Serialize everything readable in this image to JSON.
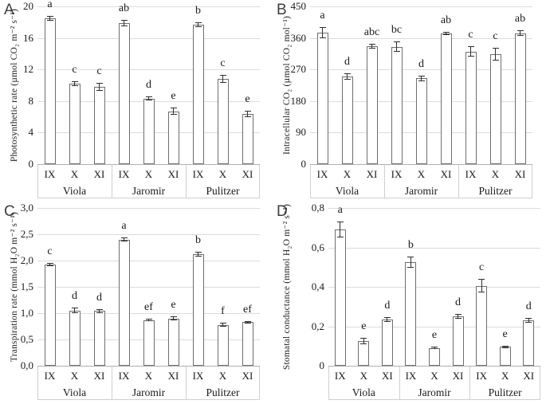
{
  "figure": {
    "background": "#ffffff"
  },
  "colors": {
    "bar_fill": "#ffffff",
    "bar_border": "#6e6e6e",
    "gridline": "#dcdcdc",
    "axis_line": "#b0b0b0",
    "separator": "#cfcfcf",
    "error_bar": "#2f2f2f",
    "text": "#1a1a1a",
    "panel_letter": "#3d3d3d"
  },
  "chart_data": [
    {
      "panel": "A",
      "type": "bar",
      "title": "",
      "ylabel": "Photosynthetic rate (µmol CO₂ m⁻² s⁻¹)",
      "xlabel": "",
      "ylim": [
        0,
        20
      ],
      "yticks": [
        0,
        4,
        8,
        12,
        16,
        20
      ],
      "ytick_labels": [
        "0",
        "4",
        "8",
        "12",
        "16",
        "20"
      ],
      "grid": true,
      "legend": "none",
      "categories": [
        "IX",
        "X",
        "XI"
      ],
      "groups": [
        {
          "label": "Viola",
          "values": [
            18.5,
            10.2,
            9.8
          ],
          "errors": [
            0.3,
            0.3,
            0.5
          ],
          "letters": [
            "a",
            "c",
            "c"
          ]
        },
        {
          "label": "Jaromir",
          "values": [
            17.9,
            8.3,
            6.7
          ],
          "errors": [
            0.4,
            0.25,
            0.45
          ],
          "letters": [
            "ab",
            "d",
            "e"
          ]
        },
        {
          "label": "Pulitzer",
          "values": [
            17.7,
            10.8,
            6.4
          ],
          "errors": [
            0.3,
            0.5,
            0.4
          ],
          "letters": [
            "b",
            "c",
            "e"
          ]
        }
      ]
    },
    {
      "panel": "B",
      "type": "bar",
      "title": "",
      "ylabel": "Intracellular CO₂ (µmol CO₂ mol⁻¹)",
      "xlabel": "",
      "ylim": [
        0,
        450
      ],
      "yticks": [
        0,
        90,
        180,
        270,
        360,
        450
      ],
      "ytick_labels": [
        "0",
        "90",
        "180",
        "270",
        "360",
        "450"
      ],
      "grid": true,
      "legend": "none",
      "categories": [
        "IX",
        "X",
        "XI"
      ],
      "groups": [
        {
          "label": "Viola",
          "values": [
            375,
            250,
            336
          ],
          "errors": [
            15,
            10,
            7
          ],
          "letters": [
            "a",
            "d",
            "abc"
          ]
        },
        {
          "label": "Jaromir",
          "values": [
            335,
            245,
            373
          ],
          "errors": [
            14,
            8,
            4
          ],
          "letters": [
            "bc",
            "d",
            "ab"
          ]
        },
        {
          "label": "Pulitzer",
          "values": [
            321,
            313,
            373
          ],
          "errors": [
            15,
            18,
            8
          ],
          "letters": [
            "c",
            "c",
            "ab"
          ]
        }
      ]
    },
    {
      "panel": "C",
      "type": "bar",
      "title": "",
      "ylabel": "Transpiration rate (mmol H₂O m⁻² s⁻¹)",
      "xlabel": "",
      "ylim": [
        0,
        3
      ],
      "yticks": [
        0,
        0.5,
        1,
        1.5,
        2,
        2.5,
        3
      ],
      "ytick_labels": [
        "0,0",
        "0,5",
        "1,0",
        "1,5",
        "2,0",
        "2,5",
        "3,0"
      ],
      "grid": true,
      "legend": "none",
      "categories": [
        "IX",
        "X",
        "XI"
      ],
      "groups": [
        {
          "label": "Viola",
          "values": [
            1.93,
            1.05,
            1.04
          ],
          "errors": [
            0.03,
            0.05,
            0.04
          ],
          "letters": [
            "c",
            "d",
            "d"
          ]
        },
        {
          "label": "Jaromir",
          "values": [
            2.4,
            0.87,
            0.9
          ],
          "errors": [
            0.04,
            0.02,
            0.04
          ],
          "letters": [
            "a",
            "ef",
            "e"
          ]
        },
        {
          "label": "Pulitzer",
          "values": [
            2.12,
            0.78,
            0.83
          ],
          "errors": [
            0.04,
            0.04,
            0.02
          ],
          "letters": [
            "b",
            "f",
            "ef"
          ]
        }
      ]
    },
    {
      "panel": "D",
      "type": "bar",
      "title": "",
      "ylabel": "Stomatal conductance (mmol H₂O m⁻² s⁻¹)",
      "xlabel": "",
      "ylim": [
        0,
        0.8
      ],
      "yticks": [
        0,
        0.2,
        0.4,
        0.6,
        0.8
      ],
      "ytick_labels": [
        "0",
        "0,2",
        "0,4",
        "0,6",
        "0,8"
      ],
      "grid": true,
      "legend": "none",
      "categories": [
        "IX",
        "X",
        "XI"
      ],
      "groups": [
        {
          "label": "Viola",
          "values": [
            0.69,
            0.125,
            0.235
          ],
          "errors": [
            0.04,
            0.015,
            0.012
          ],
          "letters": [
            "a",
            "e",
            "d"
          ]
        },
        {
          "label": "Jaromir",
          "values": [
            0.525,
            0.09,
            0.25
          ],
          "errors": [
            0.03,
            0.006,
            0.012
          ],
          "letters": [
            "b",
            "e",
            "d"
          ]
        },
        {
          "label": "Pulitzer",
          "values": [
            0.405,
            0.095,
            0.23
          ],
          "errors": [
            0.035,
            0.005,
            0.012
          ],
          "letters": [
            "c",
            "e",
            "d"
          ]
        }
      ]
    }
  ]
}
